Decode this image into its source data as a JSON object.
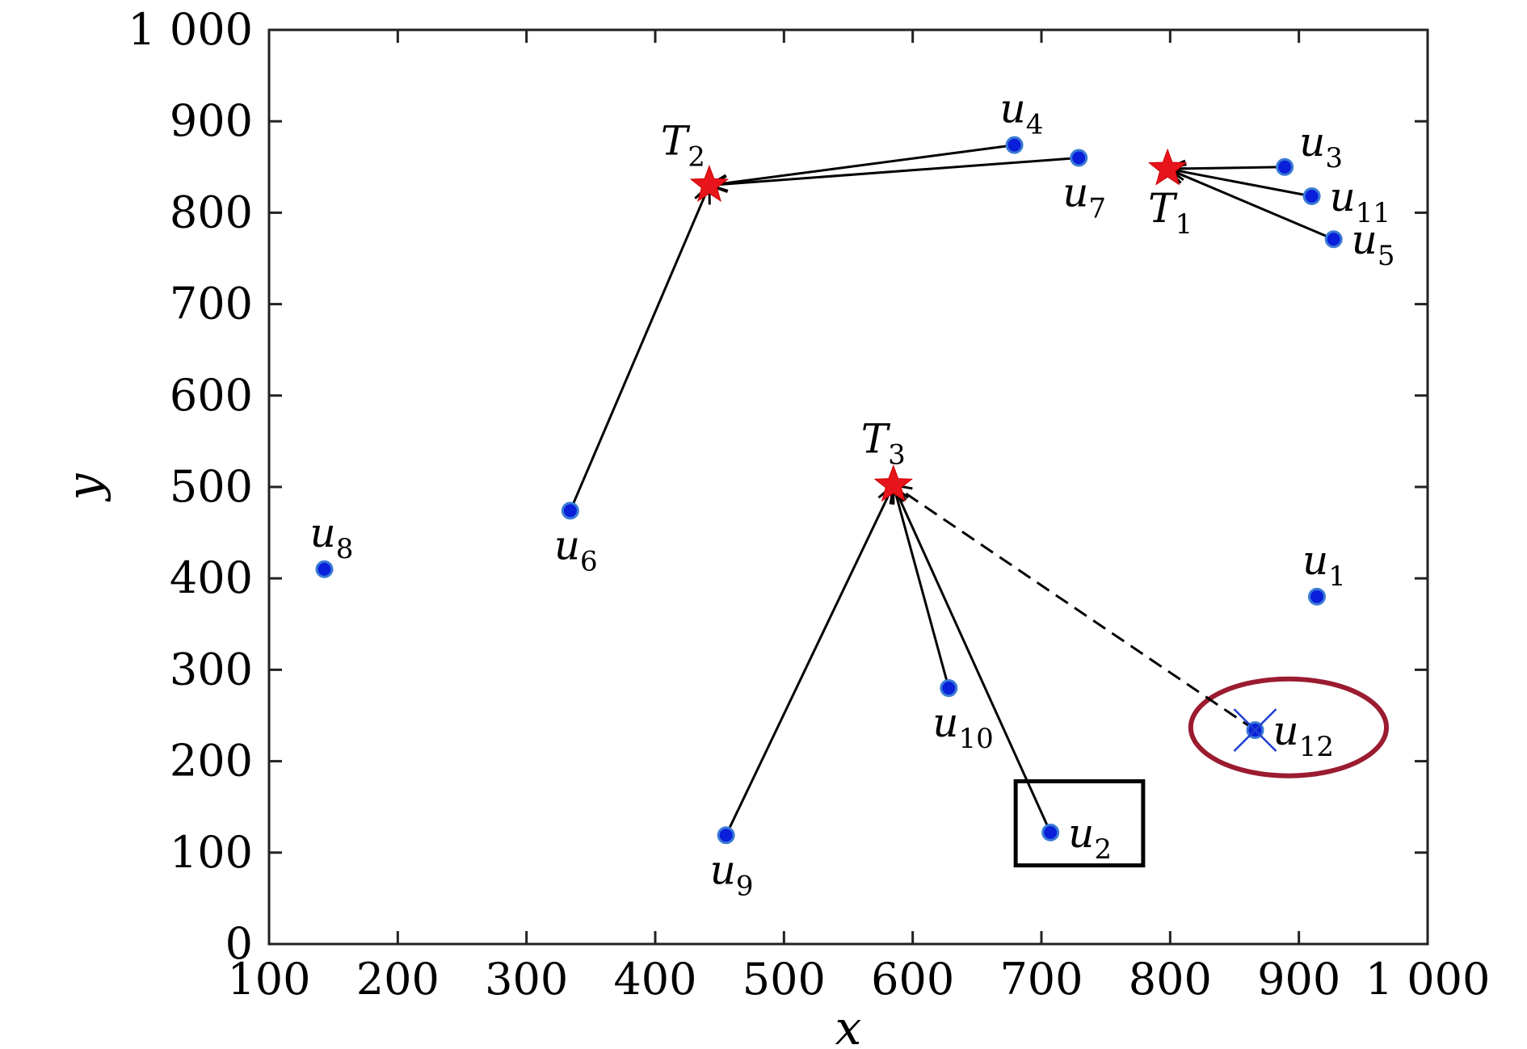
{
  "chart_data": {
    "type": "scatter",
    "title": "",
    "xlabel": "x",
    "ylabel": "y",
    "xlim": [
      100,
      1000
    ],
    "ylim": [
      0,
      1000
    ],
    "x_ticks": [
      100,
      200,
      300,
      400,
      500,
      600,
      700,
      800,
      900,
      1000
    ],
    "y_ticks": [
      0,
      100,
      200,
      300,
      400,
      500,
      600,
      700,
      800,
      900,
      1000
    ],
    "x_tick_labels": [
      "100",
      "200",
      "300",
      "400",
      "500",
      "600",
      "700",
      "800",
      "900",
      "1 000"
    ],
    "y_tick_labels": [
      "0",
      "100",
      "200",
      "300",
      "400",
      "500",
      "600",
      "700",
      "800",
      "900",
      "1 000"
    ],
    "grid": false,
    "colors": {
      "user_fill": "#0a1fd9",
      "user_edge": "#3b7bd6",
      "target": "#e8141b",
      "link": "#000000",
      "ellipse": "#9b1b30",
      "cross": "#1f3fd0"
    },
    "targets": [
      {
        "id": "T1",
        "base": "T",
        "sub": "1",
        "x": 798,
        "y": 848,
        "label_pos": "below"
      },
      {
        "id": "T2",
        "base": "T",
        "sub": "2",
        "x": 442,
        "y": 830,
        "label_pos": "above-left"
      },
      {
        "id": "T3",
        "base": "T",
        "sub": "3",
        "x": 585,
        "y": 502,
        "label_pos": "above"
      }
    ],
    "users": [
      {
        "id": "u1",
        "base": "u",
        "sub": "1",
        "x": 914,
        "y": 380,
        "label_pos": "above"
      },
      {
        "id": "u2",
        "base": "u",
        "sub": "2",
        "x": 707,
        "y": 122,
        "label_pos": "right"
      },
      {
        "id": "u3",
        "base": "u",
        "sub": "3",
        "x": 889,
        "y": 850,
        "label_pos": "above-right"
      },
      {
        "id": "u4",
        "base": "u",
        "sub": "4",
        "x": 679,
        "y": 874,
        "label_pos": "above"
      },
      {
        "id": "u5",
        "base": "u",
        "sub": "5",
        "x": 927,
        "y": 771,
        "label_pos": "right"
      },
      {
        "id": "u6",
        "base": "u",
        "sub": "6",
        "x": 334,
        "y": 474,
        "label_pos": "below"
      },
      {
        "id": "u7",
        "base": "u",
        "sub": "7",
        "x": 729,
        "y": 860,
        "label_pos": "below"
      },
      {
        "id": "u8",
        "base": "u",
        "sub": "8",
        "x": 143,
        "y": 410,
        "label_pos": "above"
      },
      {
        "id": "u9",
        "base": "u",
        "sub": "9",
        "x": 455,
        "y": 119,
        "label_pos": "below"
      },
      {
        "id": "u10",
        "base": "u",
        "sub": "10",
        "x": 628,
        "y": 280,
        "label_pos": "below"
      },
      {
        "id": "u11",
        "base": "u",
        "sub": "11",
        "x": 910,
        "y": 818,
        "label_pos": "right"
      },
      {
        "id": "u12",
        "base": "u",
        "sub": "12",
        "x": 866,
        "y": 234,
        "label_pos": "right"
      }
    ],
    "links": [
      {
        "from": "u3",
        "to": "T1",
        "style": "solid"
      },
      {
        "from": "u11",
        "to": "T1",
        "style": "solid"
      },
      {
        "from": "u5",
        "to": "T1",
        "style": "solid"
      },
      {
        "from": "u4",
        "to": "T2",
        "style": "solid"
      },
      {
        "from": "u7",
        "to": "T2",
        "style": "solid"
      },
      {
        "from": "u6",
        "to": "T2",
        "style": "solid"
      },
      {
        "from": "u9",
        "to": "T3",
        "style": "solid"
      },
      {
        "from": "u10",
        "to": "T3",
        "style": "solid"
      },
      {
        "from": "u2",
        "to": "T3",
        "style": "solid"
      },
      {
        "from": "u12",
        "to": "T3",
        "style": "dashed"
      }
    ],
    "highlights": [
      {
        "type": "box",
        "target": "u2",
        "x_range": [
          680,
          779
        ],
        "y_range": [
          86,
          178
        ]
      },
      {
        "type": "ellipse",
        "target": "u12",
        "center": [
          892,
          237
        ],
        "radii": [
          76,
          53
        ]
      },
      {
        "type": "cross",
        "target": "u12"
      }
    ]
  }
}
